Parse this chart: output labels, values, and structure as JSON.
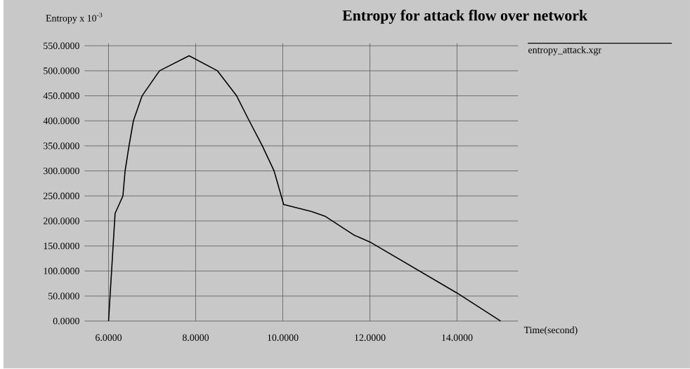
{
  "chart_data": {
    "type": "line",
    "title": "Entropy for attack flow over network",
    "xlabel": "Time(second)",
    "ylabel": "Entropy x 10$^{-3}$",
    "series": [
      {
        "name": "entropy_attack.xgr",
        "color": "#000000",
        "x": [
          6.0,
          6.15,
          6.33,
          6.38,
          6.47,
          6.57,
          6.77,
          7.17,
          7.85,
          8.5,
          8.94,
          9.23,
          9.53,
          9.8,
          10.02,
          10.66,
          10.98,
          11.63,
          12.0,
          14.0,
          15.0
        ],
        "values": [
          0,
          215,
          250,
          300,
          350,
          400,
          450,
          500,
          530,
          500,
          450,
          400,
          350,
          300,
          233,
          219,
          209,
          172,
          158,
          56,
          0
        ]
      }
    ],
    "xlim": [
      5.45,
      15.4
    ],
    "ylim": [
      0,
      555
    ],
    "xticks": [
      {
        "value": 6,
        "label": "6.0000"
      },
      {
        "value": 8,
        "label": "8.0000"
      },
      {
        "value": 10,
        "label": "10.0000"
      },
      {
        "value": 12,
        "label": "12.0000"
      },
      {
        "value": 14,
        "label": "14.0000"
      }
    ],
    "yticks": [
      {
        "value": 0,
        "label": "0.0000"
      },
      {
        "value": 50,
        "label": "50.0000"
      },
      {
        "value": 100,
        "label": "100.0000"
      },
      {
        "value": 150,
        "label": "150.0000"
      },
      {
        "value": 200,
        "label": "200.0000"
      },
      {
        "value": 250,
        "label": "250.0000"
      },
      {
        "value": 300,
        "label": "300.0000"
      },
      {
        "value": 350,
        "label": "350.0000"
      },
      {
        "value": 400,
        "label": "400.0000"
      },
      {
        "value": 450,
        "label": "450.0000"
      },
      {
        "value": 500,
        "label": "500.0000"
      },
      {
        "value": 550,
        "label": "550.0000"
      }
    ],
    "grid": true,
    "legend": "top right",
    "marker": "none",
    "line_style": "solid"
  }
}
